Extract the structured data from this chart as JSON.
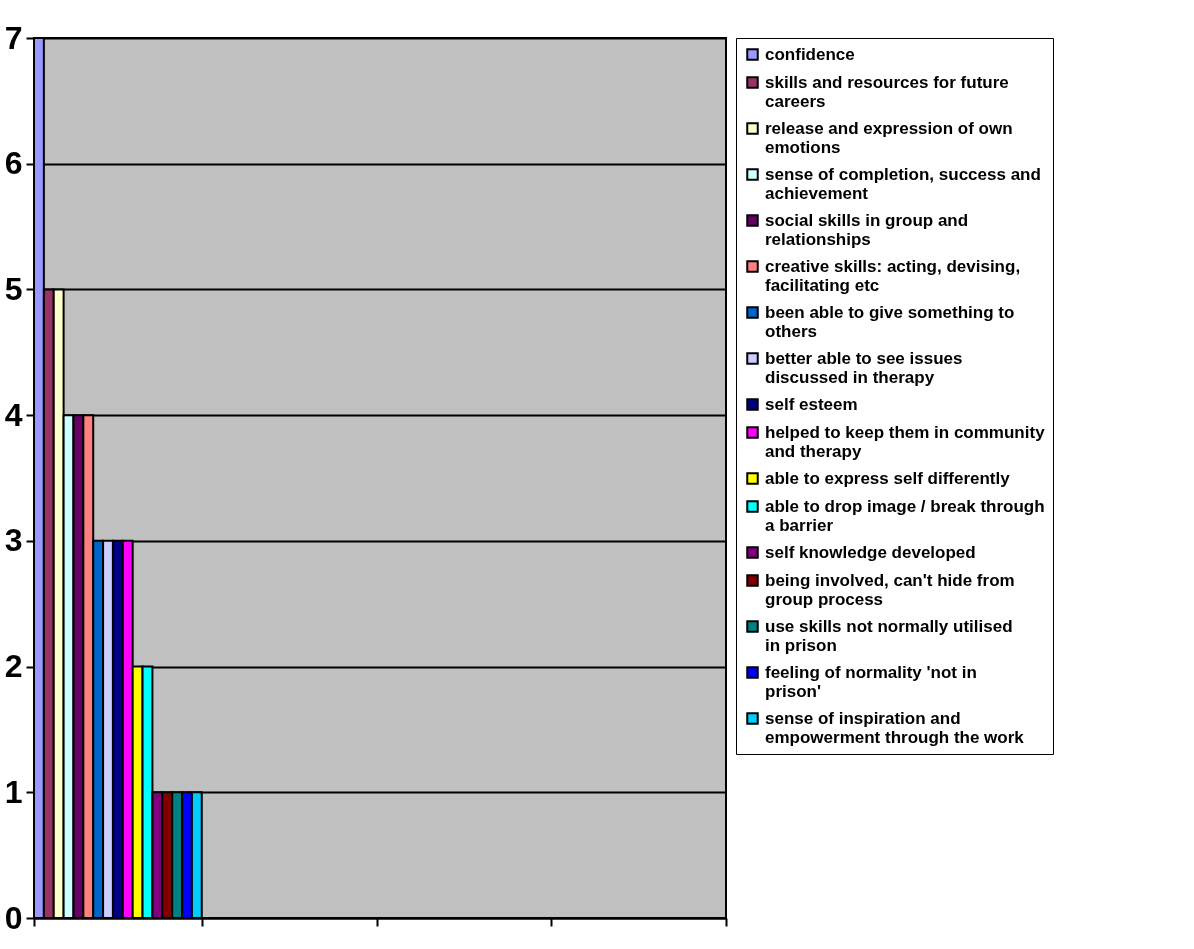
{
  "chart_data": {
    "type": "bar",
    "categories": [
      null,
      null,
      null,
      null
    ],
    "ylim": [
      0,
      7
    ],
    "yticks": [
      0,
      1,
      2,
      3,
      4,
      5,
      6,
      7
    ],
    "grid": "y",
    "legend": "right",
    "tick_labels": "y",
    "series": [
      {
        "name": "confidence",
        "color": "#9999ff",
        "values": [
          7,
          null,
          null,
          null
        ]
      },
      {
        "name": "skills and resources for future careers",
        "color": "#993366",
        "values": [
          5,
          null,
          null,
          null
        ]
      },
      {
        "name": "release and expression of own emotions",
        "color": "#ffffcc",
        "values": [
          5,
          null,
          null,
          null
        ]
      },
      {
        "name": "sense of completion, success and achievement",
        "color": "#ccffff",
        "values": [
          4,
          null,
          null,
          null
        ]
      },
      {
        "name": "social skills in group and relationships",
        "color": "#660066",
        "values": [
          4,
          null,
          null,
          null
        ]
      },
      {
        "name": "creative skills: acting, devising, facilitating etc",
        "color": "#ff8080",
        "values": [
          4,
          null,
          null,
          null
        ]
      },
      {
        "name": "been able to give something to others",
        "color": "#0066cc",
        "values": [
          3,
          null,
          null,
          null
        ]
      },
      {
        "name": "better able to see issues discussed in therapy",
        "color": "#ccccff",
        "values": [
          3,
          null,
          null,
          null
        ]
      },
      {
        "name": "self esteem",
        "color": "#000080",
        "values": [
          3,
          null,
          null,
          null
        ]
      },
      {
        "name": "helped to keep them in community and therapy",
        "color": "#ff00ff",
        "values": [
          3,
          null,
          null,
          null
        ]
      },
      {
        "name": "able to express self differently",
        "color": "#ffff00",
        "values": [
          2,
          null,
          null,
          null
        ]
      },
      {
        "name": "able to drop image / break through a barrier",
        "color": "#00ffff",
        "values": [
          2,
          null,
          null,
          null
        ]
      },
      {
        "name": "self knowledge developed",
        "color": "#800080",
        "values": [
          1,
          null,
          null,
          null
        ]
      },
      {
        "name": "being involved, can't hide from group process",
        "color": "#800000",
        "values": [
          1,
          null,
          null,
          null
        ]
      },
      {
        "name": "use skills not normally utilised in prison",
        "color": "#008080",
        "values": [
          1,
          null,
          null,
          null
        ]
      },
      {
        "name": "feeling of normality 'not in prison'",
        "color": "#0000ff",
        "values": [
          1,
          null,
          null,
          null
        ]
      },
      {
        "name": "sense of inspiration and empowerment through the work",
        "color": "#00ccff",
        "values": [
          1,
          null,
          null,
          null
        ]
      }
    ]
  }
}
